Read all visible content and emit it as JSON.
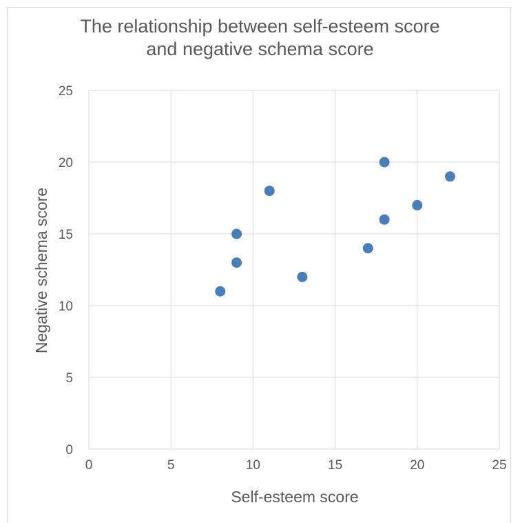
{
  "chart_data": {
    "type": "scatter",
    "title": "The relationship between self-esteem score\nand negative schema score",
    "xlabel": "Self-esteem score",
    "ylabel": "Negative schema score",
    "xlim": [
      0,
      25
    ],
    "ylim": [
      0,
      25
    ],
    "xticks": [
      0,
      5,
      10,
      15,
      20,
      25
    ],
    "yticks": [
      0,
      5,
      10,
      15,
      20,
      25
    ],
    "grid": true,
    "legend": "none",
    "marker_color": "#4a7ebb",
    "points": [
      {
        "x": 8,
        "y": 11
      },
      {
        "x": 9,
        "y": 13
      },
      {
        "x": 9,
        "y": 15
      },
      {
        "x": 11,
        "y": 18
      },
      {
        "x": 13,
        "y": 12
      },
      {
        "x": 17,
        "y": 14
      },
      {
        "x": 18,
        "y": 16
      },
      {
        "x": 18,
        "y": 20
      },
      {
        "x": 20,
        "y": 17
      },
      {
        "x": 22,
        "y": 19
      }
    ]
  }
}
